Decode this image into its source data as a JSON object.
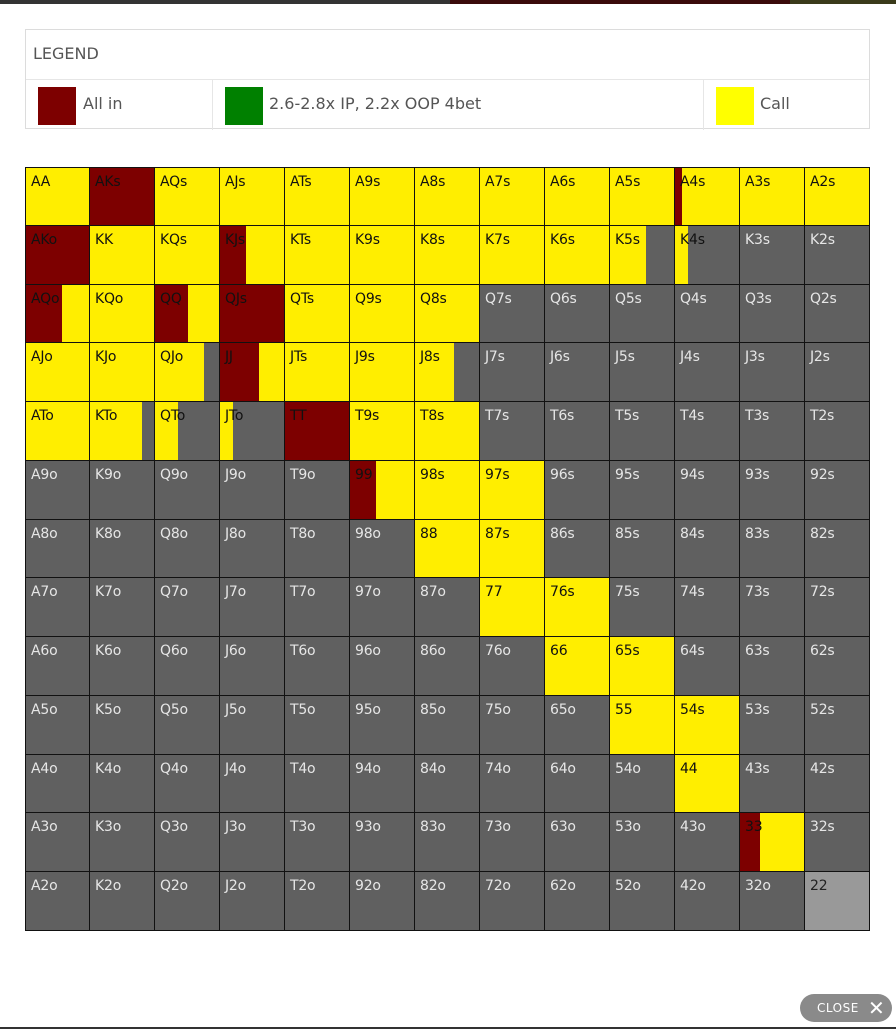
{
  "legend": {
    "title": "LEGEND",
    "items": [
      {
        "label": "All in",
        "color": "#7d0000"
      },
      {
        "label": "2.6-2.8x IP, 2.2x OOP 4bet",
        "color": "#008000"
      },
      {
        "label": "Call",
        "color": "#ffff00"
      }
    ]
  },
  "close_label": "CLOSE",
  "colors": {
    "allin": "#7d0000",
    "call": "#ffee00",
    "fold": "#606060",
    "pair22": "#999999"
  },
  "grid": [
    [
      "AA",
      "AKs",
      "AQs",
      "AJs",
      "ATs",
      "A9s",
      "A8s",
      "A7s",
      "A6s",
      "A5s",
      "A4s",
      "A3s",
      "A2s"
    ],
    [
      "AKo",
      "KK",
      "KQs",
      "KJs",
      "KTs",
      "K9s",
      "K8s",
      "K7s",
      "K6s",
      "K5s",
      "K4s",
      "K3s",
      "K2s"
    ],
    [
      "AQo",
      "KQo",
      "QQ",
      "QJs",
      "QTs",
      "Q9s",
      "Q8s",
      "Q7s",
      "Q6s",
      "Q5s",
      "Q4s",
      "Q3s",
      "Q2s"
    ],
    [
      "AJo",
      "KJo",
      "QJo",
      "JJ",
      "JTs",
      "J9s",
      "J8s",
      "J7s",
      "J6s",
      "J5s",
      "J4s",
      "J3s",
      "J2s"
    ],
    [
      "ATo",
      "KTo",
      "QTo",
      "JTo",
      "TT",
      "T9s",
      "T8s",
      "T7s",
      "T6s",
      "T5s",
      "T4s",
      "T3s",
      "T2s"
    ],
    [
      "A9o",
      "K9o",
      "Q9o",
      "J9o",
      "T9o",
      "99",
      "98s",
      "97s",
      "96s",
      "95s",
      "94s",
      "93s",
      "92s"
    ],
    [
      "A8o",
      "K8o",
      "Q8o",
      "J8o",
      "T8o",
      "98o",
      "88",
      "87s",
      "86s",
      "85s",
      "84s",
      "83s",
      "82s"
    ],
    [
      "A7o",
      "K7o",
      "Q7o",
      "J7o",
      "T7o",
      "97o",
      "87o",
      "77",
      "76s",
      "75s",
      "74s",
      "73s",
      "72s"
    ],
    [
      "A6o",
      "K6o",
      "Q6o",
      "J6o",
      "T6o",
      "96o",
      "86o",
      "76o",
      "66",
      "65s",
      "64s",
      "63s",
      "62s"
    ],
    [
      "A5o",
      "K5o",
      "Q5o",
      "J5o",
      "T5o",
      "95o",
      "85o",
      "75o",
      "65o",
      "55",
      "54s",
      "53s",
      "52s"
    ],
    [
      "A4o",
      "K4o",
      "Q4o",
      "J4o",
      "T4o",
      "94o",
      "84o",
      "74o",
      "64o",
      "54o",
      "44",
      "43s",
      "42s"
    ],
    [
      "A3o",
      "K3o",
      "Q3o",
      "J3o",
      "T3o",
      "93o",
      "83o",
      "73o",
      "63o",
      "53o",
      "43o",
      "33",
      "32s"
    ],
    [
      "A2o",
      "K2o",
      "Q2o",
      "J2o",
      "T2o",
      "92o",
      "82o",
      "72o",
      "62o",
      "52o",
      "42o",
      "32o",
      "22"
    ]
  ],
  "frequencies": {
    "AA": {
      "call": 1
    },
    "AKs": {
      "allin": 1
    },
    "AQs": {
      "call": 1
    },
    "AJs": {
      "call": 1
    },
    "ATs": {
      "call": 1
    },
    "A9s": {
      "call": 1
    },
    "A8s": {
      "call": 1
    },
    "A7s": {
      "call": 1
    },
    "A6s": {
      "call": 1
    },
    "A5s": {
      "call": 1
    },
    "A4s": {
      "allin": 0.1,
      "call": 0.9
    },
    "A3s": {
      "call": 1
    },
    "A2s": {
      "call": 1
    },
    "AKo": {
      "allin": 1
    },
    "KK": {
      "call": 1
    },
    "KQs": {
      "call": 1
    },
    "KJs": {
      "allin": 0.4,
      "call": 0.6
    },
    "KTs": {
      "call": 1
    },
    "K9s": {
      "call": 1
    },
    "K8s": {
      "call": 1
    },
    "K7s": {
      "call": 1
    },
    "K6s": {
      "call": 1
    },
    "K5s": {
      "call": 0.55
    },
    "K4s": {
      "call": 0.2
    },
    "AQo": {
      "allin": 0.55,
      "call": 0.45
    },
    "KQo": {
      "call": 1
    },
    "QQ": {
      "allin": 0.5,
      "call": 0.5
    },
    "QJs": {
      "allin": 1
    },
    "QTs": {
      "call": 1
    },
    "Q9s": {
      "call": 1
    },
    "Q8s": {
      "call": 1
    },
    "AJo": {
      "call": 1
    },
    "KJo": {
      "call": 1
    },
    "QJo": {
      "call": 0.75
    },
    "JJ": {
      "allin": 0.6,
      "call": 0.4
    },
    "JTs": {
      "call": 1
    },
    "J9s": {
      "call": 1
    },
    "J8s": {
      "call": 0.6
    },
    "ATo": {
      "call": 1
    },
    "KTo": {
      "call": 0.8
    },
    "QTo": {
      "call": 0.35
    },
    "JTo": {
      "call": 0.2
    },
    "TT": {
      "allin": 1
    },
    "T9s": {
      "call": 1
    },
    "T8s": {
      "call": 1
    },
    "99": {
      "allin": 0.4,
      "call": 0.6
    },
    "98s": {
      "call": 1
    },
    "97s": {
      "call": 1
    },
    "88": {
      "call": 1
    },
    "87s": {
      "call": 1
    },
    "77": {
      "call": 1
    },
    "76s": {
      "call": 1
    },
    "66": {
      "call": 1
    },
    "65s": {
      "call": 1
    },
    "55": {
      "call": 1
    },
    "54s": {
      "call": 1
    },
    "44": {
      "call": 1
    },
    "33": {
      "allin": 0.3,
      "call": 0.7
    }
  }
}
